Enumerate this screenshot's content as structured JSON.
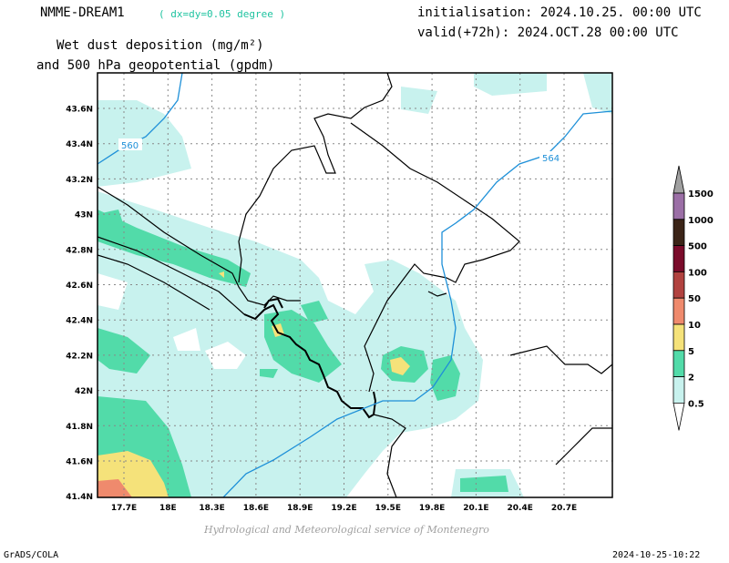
{
  "header": {
    "model": "NMME-DREAM1",
    "resolution": "( dx=dy=0.05 degree )",
    "init": "initialisation: 2024.10.25. 00:00 UTC",
    "valid": "valid(+72h): 2024.OCT.28 00:00 UTC",
    "title_line1": "Wet dust deposition (mg/m²)",
    "title_line2": "and 500 hPa geopotential (gpdm)"
  },
  "map": {
    "lat_labels": [
      "43.6N",
      "43.4N",
      "43.2N",
      "43N",
      "42.8N",
      "42.6N",
      "42.4N",
      "42.2N",
      "42N",
      "41.8N",
      "41.6N",
      "41.4N"
    ],
    "lon_labels": [
      "17.7E",
      "18E",
      "18.3E",
      "18.6E",
      "18.9E",
      "19.2E",
      "19.5E",
      "19.8E",
      "20.1E",
      "20.4E",
      "20.7E"
    ],
    "contour_labels": [
      "560",
      "564"
    ],
    "contour_color": "#1e90d8",
    "fill_colors": {
      "0.5-2": "#c8f2ee",
      "2-5": "#52dba9",
      "5-10": "#f5e27a",
      "10-50": "#ef8a6d"
    }
  },
  "legend": {
    "levels": [
      "1500",
      "1000",
      "500",
      "100",
      "50",
      "10",
      "5",
      "2",
      "0.5"
    ],
    "colors": [
      "#9b6fa6",
      "#3b2417",
      "#7a0b2a",
      "#b1423f",
      "#ef8a6d",
      "#f5e27a",
      "#52dba9",
      "#c8f2ee"
    ],
    "cap_top": "#a0a0a0",
    "cap_bottom": "#ffffff"
  },
  "footer": {
    "credit": "Hydrological and Meteorological service of Montenegro",
    "software": "GrADS/COLA",
    "timestamp": "2024-10-25-10:22"
  }
}
